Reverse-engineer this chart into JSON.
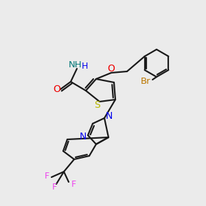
{
  "background_color": "#ebebeb",
  "bond_color": "#1a1a1a",
  "bond_width": 1.6,
  "figsize": [
    3.0,
    3.0
  ],
  "dpi": 100,
  "colors": {
    "S": "#b8b800",
    "N": "#0000ee",
    "O": "#ee0000",
    "Br": "#bb7700",
    "F": "#ee44ee",
    "NH": "#007777",
    "H": "#0000ee",
    "C": "#1a1a1a"
  }
}
